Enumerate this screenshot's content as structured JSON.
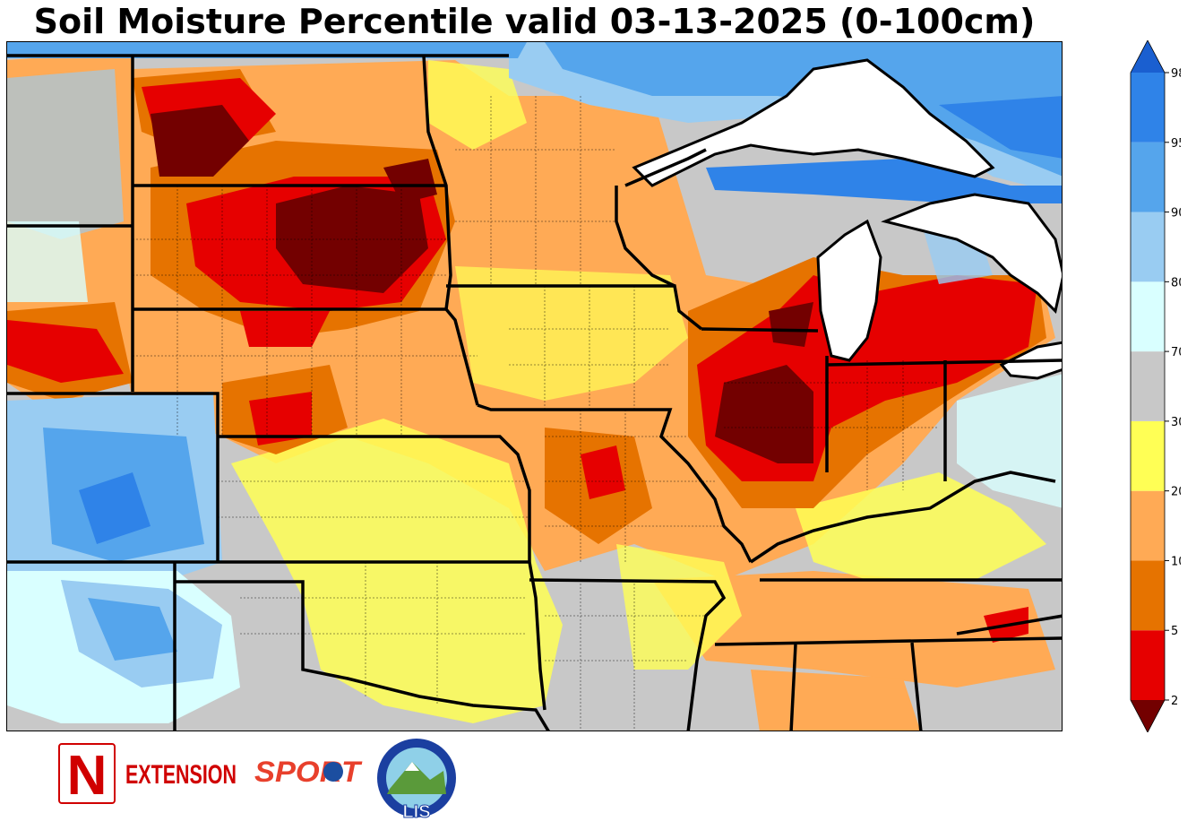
{
  "title": "Soil Moisture Percentile valid 03-13-2025 (0-100cm)",
  "legend": {
    "extend": "both",
    "ticks": [
      "2",
      "5",
      "10",
      "20",
      "30",
      "70",
      "80",
      "90",
      "95",
      "98"
    ],
    "bins": [
      {
        "range": "<2",
        "color": "#730000"
      },
      {
        "range": "2-5",
        "color": "#e60000"
      },
      {
        "range": "5-10",
        "color": "#e67300"
      },
      {
        "range": "10-20",
        "color": "#ffaa55"
      },
      {
        "range": "20-30",
        "color": "#ffff55"
      },
      {
        "range": "30-70",
        "color": "#c8c8c8"
      },
      {
        "range": "70-80",
        "color": "#d9ffff"
      },
      {
        "range": "80-90",
        "color": "#99ccf2"
      },
      {
        "range": "90-95",
        "color": "#55a5ec"
      },
      {
        "range": "95-98",
        "color": "#2f83e8"
      },
      {
        "range": ">98",
        "color": "#1a5fd0"
      }
    ]
  },
  "map": {
    "water_color": "#ffffff",
    "border_color": "#000000"
  },
  "logos": {
    "extension_letter": "N",
    "extension_text": "EXTENSION",
    "sport_text": "SPORT",
    "lis_text": "LIS",
    "brand_red": "#d00000"
  }
}
